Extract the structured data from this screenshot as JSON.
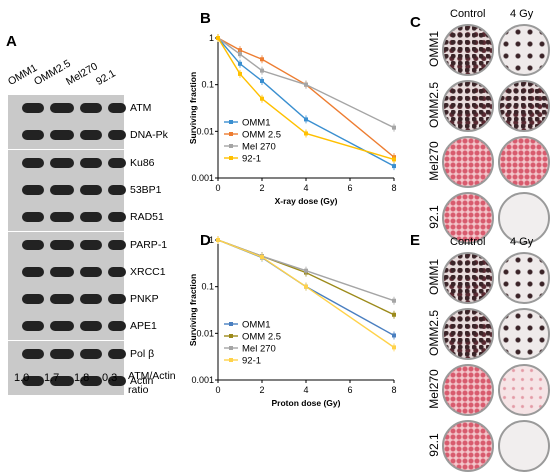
{
  "panel_a": {
    "letter": "A",
    "cell_lines": [
      "OMM1",
      "OMM2.5",
      "Mel270",
      "92.1"
    ],
    "proteins": [
      "ATM",
      "DNA-Pk",
      "Ku86",
      "53BP1",
      "RAD51",
      "PARP-1",
      "XRCC1",
      "PNKP",
      "APE1",
      "Pol β",
      "Actin"
    ],
    "ratios": [
      "1.0",
      "1.7",
      "1.8",
      "0.3"
    ],
    "ratio_label_1": "ATM/Actin",
    "ratio_label_2": "ratio"
  },
  "panel_b": {
    "letter": "B"
  },
  "panel_c": {
    "letter": "C",
    "col_headers": [
      "Control",
      "4 Gy"
    ],
    "row_labels": [
      "OMM1",
      "OMM2.5",
      "Mel270",
      "92.1"
    ]
  },
  "panel_d": {
    "letter": "D"
  },
  "panel_e": {
    "letter": "E",
    "col_headers": [
      "Control",
      "4 Gy"
    ],
    "row_labels": [
      "OMM1",
      "OMM2.5",
      "Mel270",
      "92.1"
    ]
  },
  "chart_data": [
    {
      "type": "line",
      "panel": "B",
      "xlabel": "X-ray dose (Gy)",
      "ylabel": "Surviving fraction",
      "log_y": true,
      "xlim": [
        0,
        8
      ],
      "ylim": [
        0.001,
        1
      ],
      "x_ticks": [
        "0",
        "2",
        "4",
        "6",
        "8"
      ],
      "y_ticks": [
        "0.001",
        "0.01",
        "0.1",
        "1"
      ],
      "legend_position": "bottom-left",
      "x": [
        0,
        1,
        2,
        4,
        8
      ],
      "series": [
        {
          "name": "OMM1",
          "color": "#3a8fd0",
          "values": [
            1,
            0.28,
            0.12,
            0.018,
            0.0018
          ]
        },
        {
          "name": "OMM 2.5",
          "color": "#ed7d31",
          "values": [
            1,
            0.55,
            0.35,
            0.1,
            0.0028
          ]
        },
        {
          "name": "Mel 270",
          "color": "#a5a5a5",
          "values": [
            1,
            0.45,
            0.2,
            0.1,
            0.012
          ]
        },
        {
          "name": "92-1",
          "color": "#ffc000",
          "values": [
            1,
            0.17,
            0.05,
            0.009,
            0.0025
          ]
        }
      ]
    },
    {
      "type": "line",
      "panel": "D",
      "xlabel": "Proton dose (Gy)",
      "ylabel": "Surviving fraction",
      "log_y": true,
      "xlim": [
        0,
        8
      ],
      "ylim": [
        0.001,
        1
      ],
      "x_ticks": [
        "0",
        "2",
        "4",
        "6",
        "8"
      ],
      "y_ticks": [
        "0.001",
        "0.01",
        "0.1",
        "1"
      ],
      "legend_position": "bottom-left",
      "x": [
        0,
        2,
        4,
        8
      ],
      "series": [
        {
          "name": "OMM1",
          "color": "#4a7fc0",
          "values": [
            1,
            0.42,
            0.1,
            0.009
          ]
        },
        {
          "name": "OMM 2.5",
          "color": "#9c8a1a",
          "values": [
            1,
            0.45,
            0.2,
            0.025
          ]
        },
        {
          "name": "Mel 270",
          "color": "#a5a5a5",
          "values": [
            1,
            0.45,
            0.22,
            0.05
          ]
        },
        {
          "name": "92-1",
          "color": "#ffd24a",
          "values": [
            1,
            0.43,
            0.1,
            0.005
          ]
        }
      ]
    }
  ]
}
